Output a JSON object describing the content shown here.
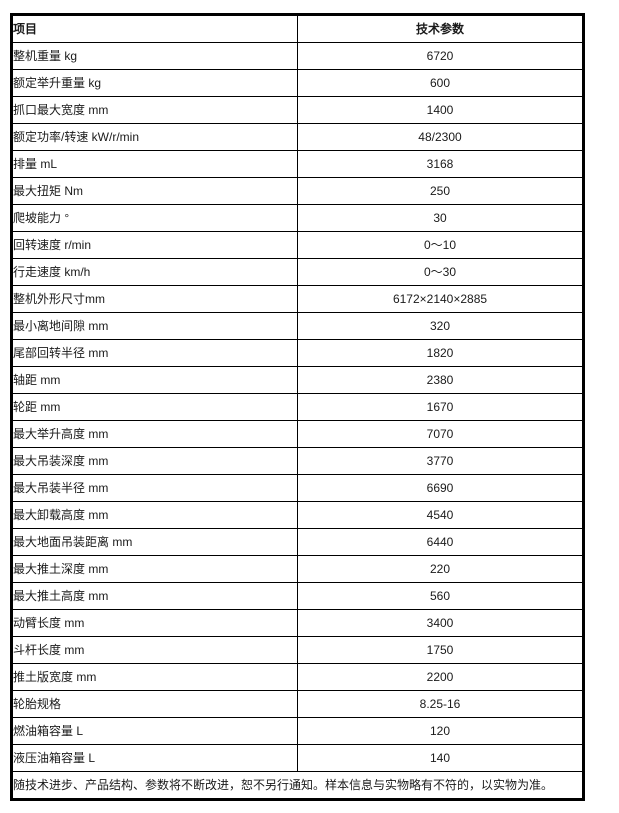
{
  "table": {
    "header": {
      "item": "项目",
      "value": "技术参数"
    },
    "rows": [
      {
        "item": "整机重量 kg",
        "value": "6720"
      },
      {
        "item": "额定举升重量 kg",
        "value": "600"
      },
      {
        "item": "抓口最大宽度 mm",
        "value": "1400"
      },
      {
        "item": "额定功率/转速 kW/r/min",
        "value": "48/2300"
      },
      {
        "item": "排量 mL",
        "value": "3168"
      },
      {
        "item": "最大扭矩 Nm",
        "value": "250"
      },
      {
        "item": "爬坡能力 °",
        "value": "30"
      },
      {
        "item": "回转速度 r/min",
        "value": "0～10"
      },
      {
        "item": "行走速度 km/h",
        "value": "0～30"
      },
      {
        "item": "整机外形尺寸mm",
        "value": "6172×2140×2885"
      },
      {
        "item": "最小离地间隙 mm",
        "value": "320"
      },
      {
        "item": "尾部回转半径 mm",
        "value": "1820"
      },
      {
        "item": "轴距 mm",
        "value": "2380"
      },
      {
        "item": "轮距 mm",
        "value": "1670"
      },
      {
        "item": "最大举升高度 mm",
        "value": "7070"
      },
      {
        "item": "最大吊装深度 mm",
        "value": "3770"
      },
      {
        "item": "最大吊装半径 mm",
        "value": "6690"
      },
      {
        "item": "最大卸载高度 mm",
        "value": "4540"
      },
      {
        "item": "最大地面吊装距离 mm",
        "value": "6440"
      },
      {
        "item": "最大推土深度 mm",
        "value": "220"
      },
      {
        "item": "最大推土高度 mm",
        "value": "560"
      },
      {
        "item": "动臂长度 mm",
        "value": "3400"
      },
      {
        "item": "斗杆长度 mm",
        "value": "1750"
      },
      {
        "item": "推土版宽度 mm",
        "value": "2200"
      },
      {
        "item": "轮胎规格",
        "value": "8.25-16"
      },
      {
        "item": "燃油箱容量 L",
        "value": "120"
      },
      {
        "item": "液压油箱容量 L",
        "value": "140"
      }
    ],
    "footer_note": "随技术进步、产品结构、参数将不断改进，恕不另行通知。样本信息与实物略有不符的，以实物为准。",
    "colors": {
      "border": "#000000",
      "text": "#1a1a1a",
      "background": "#ffffff"
    }
  }
}
